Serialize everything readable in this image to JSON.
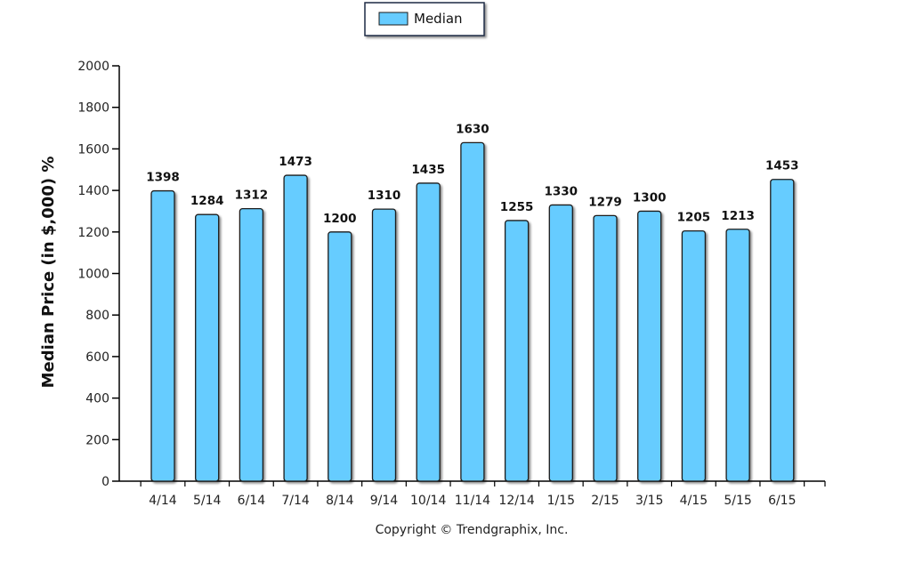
{
  "chart_data": {
    "type": "bar",
    "categories": [
      "4/14",
      "5/14",
      "6/14",
      "7/14",
      "8/14",
      "9/14",
      "10/14",
      "11/14",
      "12/14",
      "1/15",
      "2/15",
      "3/15",
      "4/15",
      "5/15",
      "6/15"
    ],
    "series": [
      {
        "name": "Median",
        "values": [
          1398,
          1284,
          1312,
          1473,
          1200,
          1310,
          1435,
          1630,
          1255,
          1330,
          1279,
          1300,
          1205,
          1213,
          1453
        ]
      }
    ],
    "title": "",
    "xlabel": "",
    "ylabel": "Median Price (in $,000) %",
    "ylim": [
      0,
      2000
    ],
    "yticks": [
      0,
      200,
      400,
      600,
      800,
      1000,
      1200,
      1400,
      1600,
      1800,
      2000
    ],
    "grid": false,
    "legend_position": "top-center",
    "data_labels": true,
    "colors": {
      "bar_fill": "#66ccff",
      "bar_stroke": "#1a1a1a",
      "axis": "#000000"
    }
  },
  "footer": {
    "copyright": "Copyright © Trendgraphix, Inc."
  }
}
